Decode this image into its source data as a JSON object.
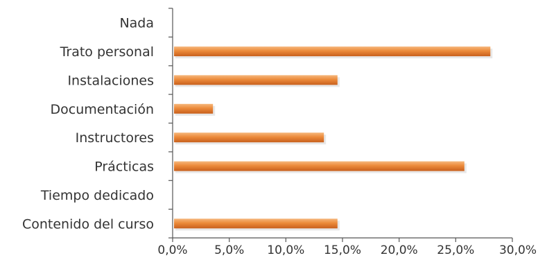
{
  "chart_data": {
    "type": "bar",
    "orientation": "horizontal",
    "categories": [
      "Nada",
      "Trato personal",
      "Instalaciones",
      "Documentación",
      "Instructores",
      "Prácticas",
      "Tiempo dedicado",
      "Contenido del curso"
    ],
    "values": [
      0,
      28.0,
      14.5,
      3.5,
      13.3,
      25.7,
      0,
      14.5
    ],
    "xlim": [
      0,
      30
    ],
    "xticks": [
      0,
      5,
      10,
      15,
      20,
      25,
      30
    ],
    "xtick_labels": [
      "0,0%",
      "5,0%",
      "10,0%",
      "15,0%",
      "20,0%",
      "25,0%",
      "30,0%"
    ],
    "title": "",
    "xlabel": "",
    "ylabel": "",
    "grid": false,
    "legend": "none",
    "colors": {
      "bar_light": "#f6b77c",
      "bar_main": "#ec8a3a",
      "bar_dark": "#c8601d",
      "axis": "#555555",
      "text": "#333333"
    }
  }
}
